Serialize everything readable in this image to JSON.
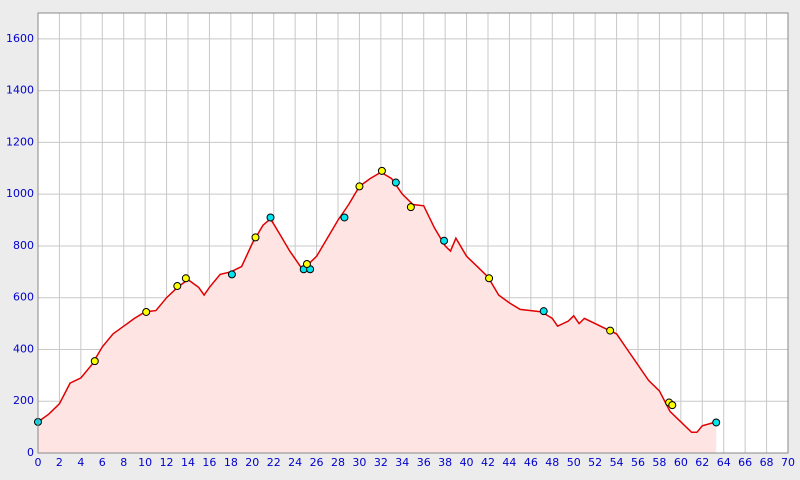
{
  "chart_data": {
    "type": "line",
    "xlim": [
      0,
      70
    ],
    "xticks": [
      0,
      2,
      4,
      6,
      8,
      10,
      12,
      14,
      16,
      18,
      20,
      22,
      24,
      26,
      28,
      30,
      32,
      34,
      36,
      38,
      40,
      42,
      44,
      46,
      48,
      50,
      52,
      54,
      56,
      58,
      60,
      62,
      64,
      66,
      68,
      70
    ],
    "ylim": [
      0,
      1700
    ],
    "yticks": [
      0,
      200,
      400,
      600,
      800,
      1000,
      1200,
      1400,
      1600
    ],
    "grid": true,
    "tick_color": "#0000cc",
    "series": [
      {
        "type": "area",
        "color": "#e00000",
        "fill": "#ffe4e4",
        "x": [
          0,
          1,
          2,
          3,
          4,
          5,
          6,
          7,
          8,
          9,
          10,
          11,
          12,
          13,
          14,
          15,
          15.5,
          16,
          17,
          18,
          19,
          20,
          21,
          21.7,
          22.5,
          23.5,
          24.5,
          25,
          26,
          27,
          28,
          29,
          30,
          31,
          32,
          33,
          34,
          35,
          36,
          37,
          38,
          38.5,
          39,
          40,
          41,
          42,
          43,
          44,
          45,
          46,
          47,
          48,
          48.5,
          49.5,
          50,
          50.5,
          51,
          52,
          53,
          54,
          55,
          56,
          57,
          58,
          59,
          60,
          61,
          61.5,
          62,
          63.3
        ],
        "values": [
          120,
          150,
          190,
          270,
          290,
          340,
          410,
          460,
          490,
          520,
          545,
          550,
          600,
          640,
          670,
          640,
          610,
          640,
          690,
          700,
          720,
          810,
          880,
          905,
          850,
          780,
          720,
          720,
          760,
          830,
          900,
          960,
          1030,
          1060,
          1085,
          1060,
          1000,
          960,
          955,
          870,
          800,
          780,
          830,
          760,
          720,
          680,
          610,
          580,
          555,
          550,
          545,
          520,
          490,
          510,
          530,
          500,
          520,
          500,
          480,
          460,
          400,
          340,
          280,
          240,
          160,
          120,
          80,
          80,
          105,
          120
        ]
      },
      {
        "type": "scatter",
        "color": "#00e5ee",
        "x": [
          0,
          18.1,
          21.7,
          24.8,
          25.4,
          28.6,
          33.4,
          37.9,
          47.2,
          63.3
        ],
        "values": [
          120,
          690,
          910,
          710,
          710,
          910,
          1045,
          820,
          548,
          118
        ]
      },
      {
        "type": "scatter",
        "color": "#ffff00",
        "x": [
          5.3,
          10.1,
          13,
          13.8,
          20.3,
          25.1,
          30,
          32.1,
          34.8,
          42.1,
          53.4,
          58.9,
          59.2
        ],
        "values": [
          355,
          545,
          645,
          675,
          833,
          730,
          1030,
          1090,
          950,
          675,
          473,
          195,
          185
        ]
      }
    ]
  }
}
